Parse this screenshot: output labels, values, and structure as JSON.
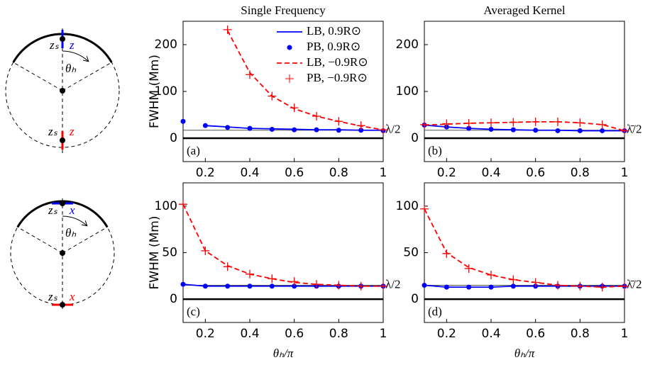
{
  "chart_data": [
    {
      "type": "line",
      "title": "Single Frequency",
      "ylabel": "FWHM (Mm)",
      "annotation": "(a)",
      "x": [
        0.1,
        0.2,
        0.3,
        0.4,
        0.5,
        0.6,
        0.7,
        0.8,
        0.9,
        1
      ],
      "xlim": [
        0.1,
        1
      ],
      "xticks": [
        0.2,
        0.4,
        0.6,
        0.8,
        1
      ],
      "ylim": [
        -50,
        250
      ],
      "yticks": [
        0,
        100,
        200
      ],
      "reference_line": {
        "value": 17,
        "label": "λ/2"
      },
      "legend": "upper right",
      "series": [
        {
          "name": "LB, 0.9R⊙",
          "color": "#0000ff",
          "marker": "line",
          "values": [
            null,
            27,
            24,
            21,
            20,
            19,
            18,
            18,
            17,
            17
          ]
        },
        {
          "name": "PB, 0.9R⊙",
          "color": "#0000ff",
          "marker": "dot",
          "values": [
            36,
            27,
            23,
            21,
            19,
            18,
            18,
            17,
            17,
            16
          ]
        },
        {
          "name": "LB, −0.9R⊙",
          "color": "#ff0000",
          "marker": "dashed",
          "values": [
            null,
            null,
            230,
            140,
            90,
            63,
            47,
            36,
            26,
            18
          ]
        },
        {
          "name": "PB, −0.9R⊙",
          "color": "#ff0000",
          "marker": "plus",
          "values": [
            null,
            null,
            232,
            136,
            90,
            65,
            47,
            36,
            27,
            18
          ]
        }
      ]
    },
    {
      "type": "line",
      "title": "Averaged Kernel",
      "annotation": "(b)",
      "x": [
        0.1,
        0.2,
        0.3,
        0.4,
        0.5,
        0.6,
        0.7,
        0.8,
        0.9,
        1
      ],
      "xlim": [
        0.1,
        1
      ],
      "xticks": [
        0.2,
        0.4,
        0.6,
        0.8,
        1
      ],
      "ylim": [
        -50,
        250
      ],
      "yticks": [
        0,
        100,
        200
      ],
      "reference_line": {
        "value": 17,
        "label": "λ̄/2"
      },
      "series": [
        {
          "color": "#0000ff",
          "marker": "line",
          "values": [
            28,
            24,
            21,
            19,
            18,
            17,
            17,
            16,
            16,
            16
          ]
        },
        {
          "color": "#0000ff",
          "marker": "dot",
          "values": [
            28,
            24,
            21,
            19,
            18,
            17,
            16,
            16,
            16,
            16
          ]
        },
        {
          "color": "#ff0000",
          "marker": "dashed",
          "values": [
            28,
            30,
            32,
            33,
            34,
            35,
            35,
            33,
            29,
            16
          ]
        },
        {
          "color": "#ff0000",
          "marker": "plus",
          "values": [
            29,
            31,
            32,
            33,
            34,
            35,
            35,
            33,
            29,
            16
          ]
        }
      ]
    },
    {
      "type": "line",
      "ylabel": "FWHM (Mm)",
      "xlabel": "θₕ/π",
      "annotation": "(c)",
      "x": [
        0.1,
        0.2,
        0.3,
        0.4,
        0.5,
        0.6,
        0.7,
        0.8,
        0.9,
        1
      ],
      "xlim": [
        0.1,
        1
      ],
      "xticks": [
        0.2,
        0.4,
        0.6,
        0.8,
        1
      ],
      "ylim": [
        -25,
        125
      ],
      "yticks": [
        0,
        50,
        100
      ],
      "reference_line": {
        "value": 15,
        "label": "λ/2"
      },
      "series": [
        {
          "color": "#0000ff",
          "marker": "line",
          "values": [
            16,
            14,
            14,
            14,
            14,
            14,
            14,
            14,
            14,
            14
          ]
        },
        {
          "color": "#0000ff",
          "marker": "dot",
          "values": [
            16,
            14,
            14,
            14,
            14,
            14,
            14,
            14,
            14,
            14
          ]
        },
        {
          "color": "#ff0000",
          "marker": "dashed",
          "values": [
            102,
            52,
            36,
            27,
            22,
            18,
            16,
            15,
            14,
            14
          ]
        },
        {
          "color": "#ff0000",
          "marker": "plus",
          "values": [
            102,
            52,
            35,
            27,
            22,
            19,
            16,
            15,
            14,
            14
          ]
        }
      ]
    },
    {
      "type": "line",
      "xlabel": "θₕ/π",
      "annotation": "(d)",
      "x": [
        0.1,
        0.2,
        0.3,
        0.4,
        0.5,
        0.6,
        0.7,
        0.8,
        0.9,
        1
      ],
      "xlim": [
        0.1,
        1
      ],
      "xticks": [
        0.2,
        0.4,
        0.6,
        0.8,
        1
      ],
      "ylim": [
        -25,
        125
      ],
      "yticks": [
        0,
        50,
        100
      ],
      "reference_line": {
        "value": 15,
        "label": "λ̄/2"
      },
      "series": [
        {
          "color": "#0000ff",
          "marker": "line",
          "values": [
            15,
            13,
            13,
            13,
            14,
            14,
            14,
            14,
            14,
            14
          ]
        },
        {
          "color": "#0000ff",
          "marker": "dot",
          "values": [
            15,
            13,
            13,
            13,
            14,
            14,
            14,
            14,
            14,
            14
          ]
        },
        {
          "color": "#ff0000",
          "marker": "dashed",
          "values": [
            97,
            50,
            34,
            26,
            21,
            18,
            15,
            14,
            13,
            14
          ]
        },
        {
          "color": "#ff0000",
          "marker": "plus",
          "values": [
            97,
            49,
            33,
            26,
            21,
            18,
            15,
            14,
            13,
            14
          ]
        }
      ]
    }
  ],
  "diagrams": [
    {
      "top_source": "zₛ",
      "top_coord": "z",
      "angle": "θₕ",
      "bottom_source": "zₛ",
      "bottom_coord": "z"
    },
    {
      "top_source": "zₛ",
      "top_coord": "x",
      "angle": "θₕ",
      "bottom_source": "zₛ",
      "bottom_coord": "x"
    }
  ]
}
